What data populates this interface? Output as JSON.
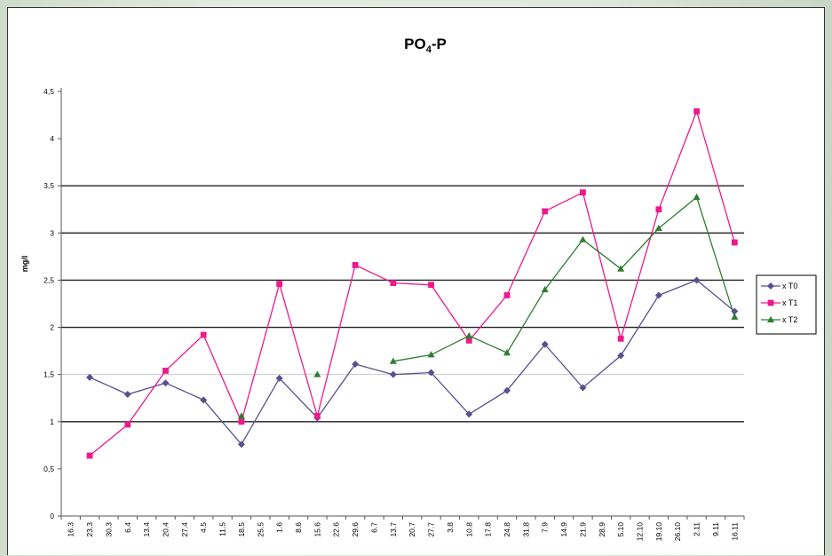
{
  "chart_data": {
    "type": "line",
    "title_main": "PO",
    "title_sub": "4",
    "title_tail": "-P",
    "xlabel": "",
    "ylabel": "mg/l",
    "ylim": [
      0,
      4.5
    ],
    "yticks": [
      0,
      0.5,
      1,
      1.5,
      2,
      2.5,
      3,
      3.5,
      4,
      4.5
    ],
    "ytick_labels": [
      "0",
      "0,5",
      "1",
      "1,5",
      "2",
      "2,5",
      "3",
      "3,5",
      "4",
      "4,5"
    ],
    "grid_major": [
      1,
      2,
      2.5,
      3,
      3.5
    ],
    "grid_minor": [
      1.5
    ],
    "legend_position": "right",
    "categories": [
      "16.3",
      "23.3",
      "30.3",
      "6.4",
      "13.4",
      "20.4",
      "27.4",
      "4.5",
      "11.5",
      "18.5",
      "25.5",
      "1.6",
      "8.6",
      "15.6",
      "22.6",
      "29.6",
      "6.7",
      "13.7",
      "20.7",
      "27.7",
      "3.8",
      "10.8",
      "17.8",
      "24.8",
      "31.8",
      "7.9",
      "14.9",
      "21.9",
      "28.9",
      "5.10",
      "12.10",
      "19.10",
      "26.10",
      "2.11",
      "9.11",
      "16.11"
    ],
    "series": [
      {
        "name": "x T0",
        "color": "#5b4f8f",
        "marker": "diamond",
        "values": [
          null,
          1.47,
          null,
          1.29,
          null,
          1.41,
          null,
          1.23,
          null,
          0.76,
          null,
          1.46,
          null,
          1.04,
          null,
          1.61,
          null,
          1.5,
          null,
          1.52,
          null,
          1.08,
          null,
          1.33,
          null,
          1.82,
          null,
          1.36,
          null,
          1.7,
          null,
          2.34,
          null,
          2.5,
          null,
          2.17
        ]
      },
      {
        "name": "x T1",
        "color": "#ec1a8c",
        "marker": "square",
        "values": [
          null,
          0.64,
          null,
          0.97,
          null,
          1.54,
          null,
          1.92,
          null,
          1.0,
          null,
          2.46,
          null,
          1.06,
          null,
          2.66,
          null,
          2.47,
          null,
          2.45,
          null,
          1.86,
          null,
          2.34,
          null,
          3.23,
          null,
          3.43,
          null,
          1.88,
          null,
          3.25,
          null,
          4.29,
          null,
          2.9
        ]
      },
      {
        "name": "x T2",
        "color": "#2e7d32",
        "marker": "triangle",
        "values": [
          null,
          null,
          null,
          null,
          null,
          null,
          null,
          null,
          null,
          1.06,
          null,
          null,
          null,
          1.5,
          null,
          null,
          null,
          1.64,
          null,
          1.71,
          null,
          1.91,
          null,
          1.73,
          null,
          2.4,
          null,
          2.93,
          null,
          2.62,
          null,
          3.05,
          null,
          3.38,
          null,
          2.11
        ]
      }
    ]
  }
}
